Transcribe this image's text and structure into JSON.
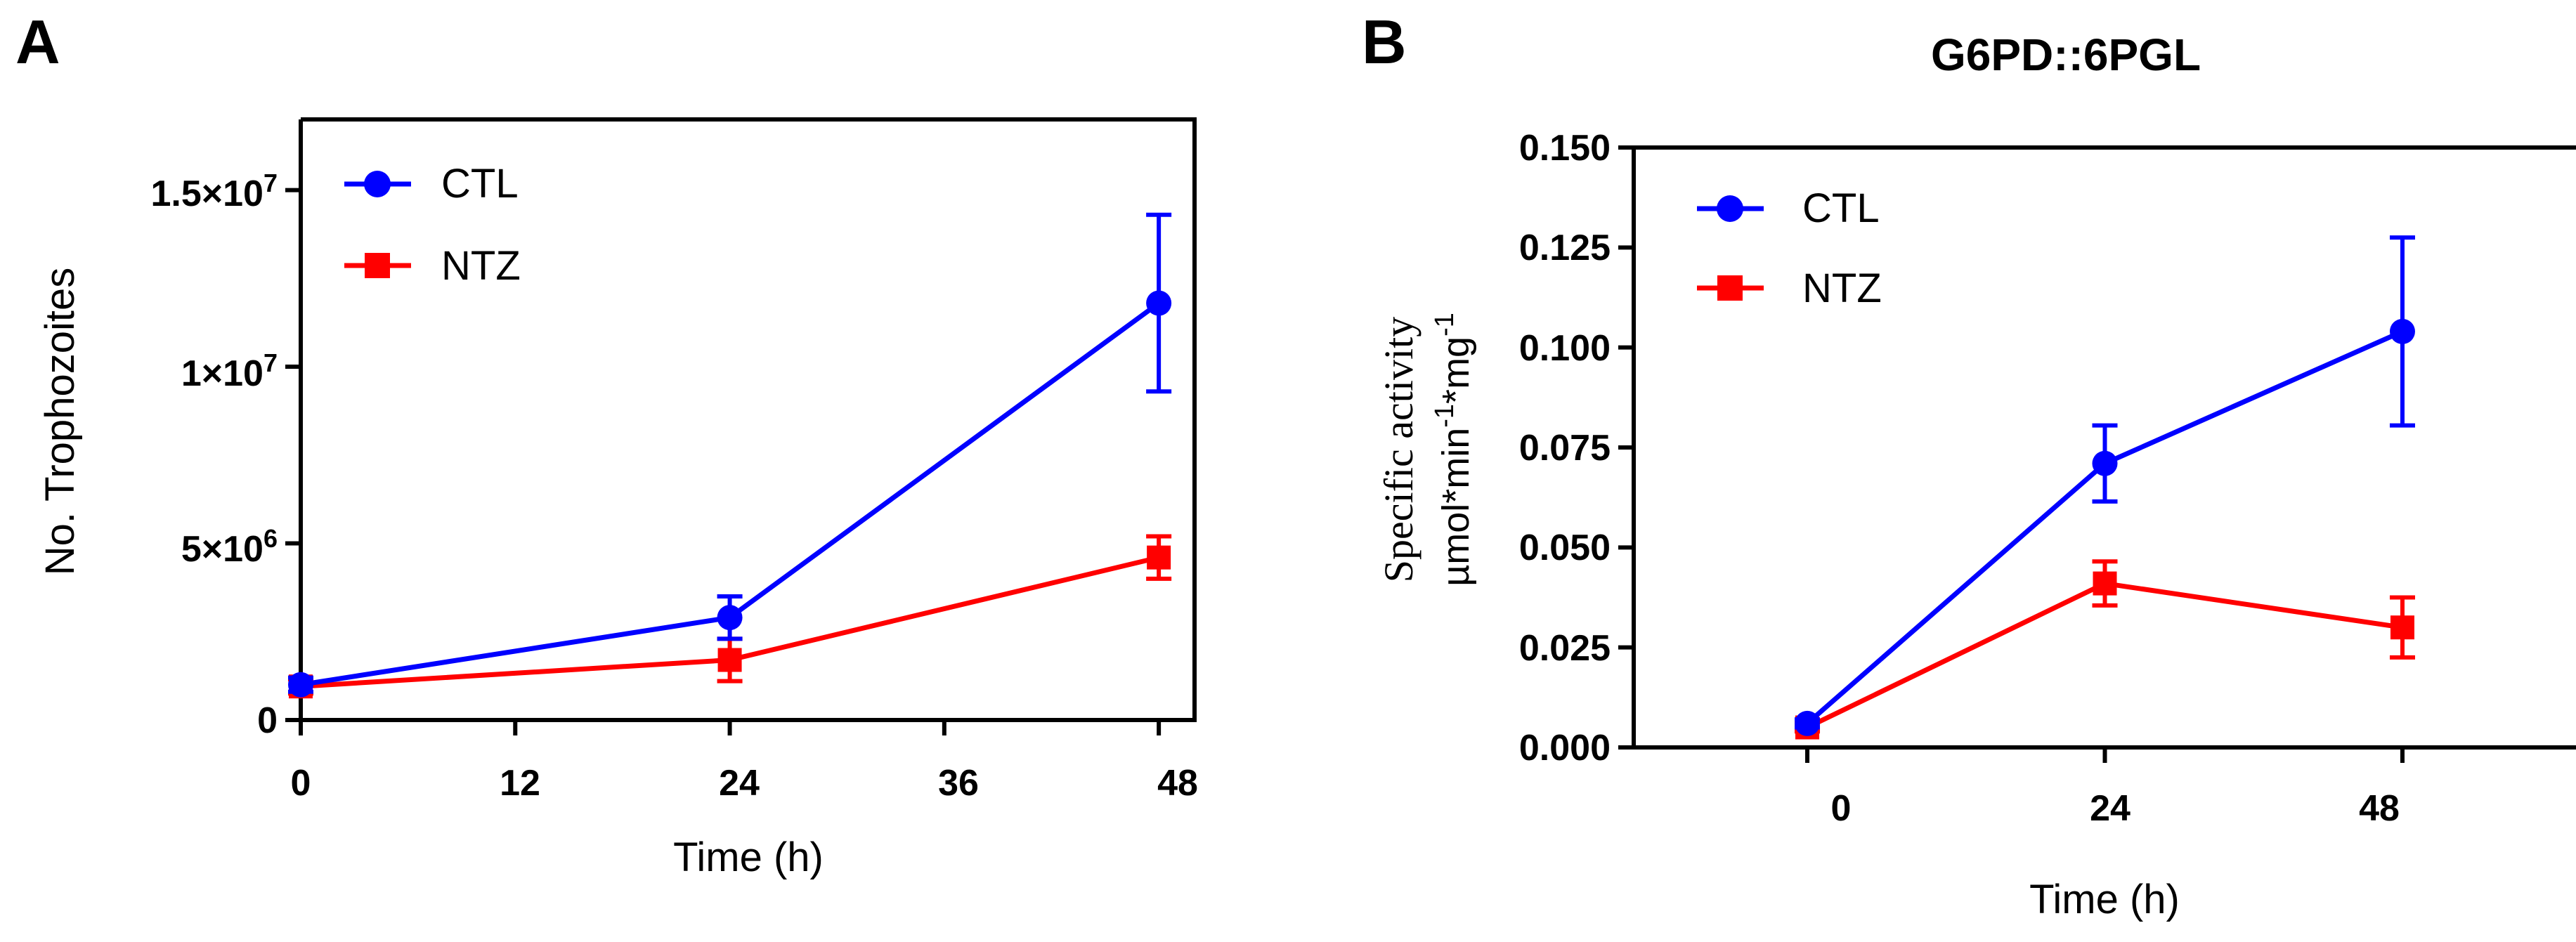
{
  "chart_data": [
    {
      "panel_label": "A",
      "type": "line",
      "title": "",
      "xlabel": "Time (h)",
      "ylabel": "No. Trophozoites",
      "xlim": [
        0,
        50
      ],
      "ylim": [
        0,
        17000000
      ],
      "x_ticks": [
        0,
        12,
        24,
        36,
        48
      ],
      "x_tick_labels": [
        "0",
        "12",
        "24",
        "36",
        "48"
      ],
      "y_ticks": [
        0,
        5000000,
        10000000,
        15000000
      ],
      "y_tick_labels": [
        {
          "mantissa": "0",
          "exp": ""
        },
        {
          "mantissa": "5×10",
          "exp": "6"
        },
        {
          "mantissa": "1×10",
          "exp": "7"
        },
        {
          "mantissa": "1.5×10",
          "exp": "7"
        }
      ],
      "legend_position": "top-left",
      "series": [
        {
          "name": "CTL",
          "color": "#0000ff",
          "marker": "circle",
          "x": [
            0,
            24,
            48
          ],
          "values": [
            1000000,
            2900000,
            11800000
          ],
          "err": [
            200000,
            600000,
            2500000
          ]
        },
        {
          "name": "NTZ",
          "color": "#ff0000",
          "marker": "square",
          "x": [
            0,
            24,
            48
          ],
          "values": [
            950000,
            1700000,
            4600000
          ],
          "err": [
            200000,
            600000,
            600000
          ]
        }
      ]
    },
    {
      "panel_label": "B",
      "type": "line",
      "title": "G6PD::6PGL",
      "xlabel": "Time (h)",
      "ylabel_line1": "Specific activity",
      "ylabel_line2": {
        "t1": "µmol*min",
        "s1": "-1",
        "t2": "*mg",
        "s2": "-1"
      },
      "xlim": [
        -14,
        62
      ],
      "ylim": [
        0,
        0.15
      ],
      "x_ticks": [
        0,
        24,
        48
      ],
      "x_tick_labels": [
        "0",
        "24",
        "48"
      ],
      "y_ticks": [
        0,
        0.025,
        0.05,
        0.075,
        0.1,
        0.125,
        0.15
      ],
      "y_tick_labels": [
        "0.000",
        "0.025",
        "0.050",
        "0.075",
        "0.100",
        "0.125",
        "0.150"
      ],
      "legend_position": "top-left",
      "series": [
        {
          "name": "CTL",
          "color": "#0000ff",
          "marker": "circle",
          "x": [
            0,
            24,
            48
          ],
          "values": [
            0.006,
            0.071,
            0.104
          ],
          "err": [
            0.001,
            0.0095,
            0.0235
          ]
        },
        {
          "name": "NTZ",
          "color": "#ff0000",
          "marker": "square",
          "x": [
            0,
            24,
            48
          ],
          "values": [
            0.005,
            0.041,
            0.03
          ],
          "err": [
            0.001,
            0.0055,
            0.0075
          ]
        }
      ]
    }
  ]
}
